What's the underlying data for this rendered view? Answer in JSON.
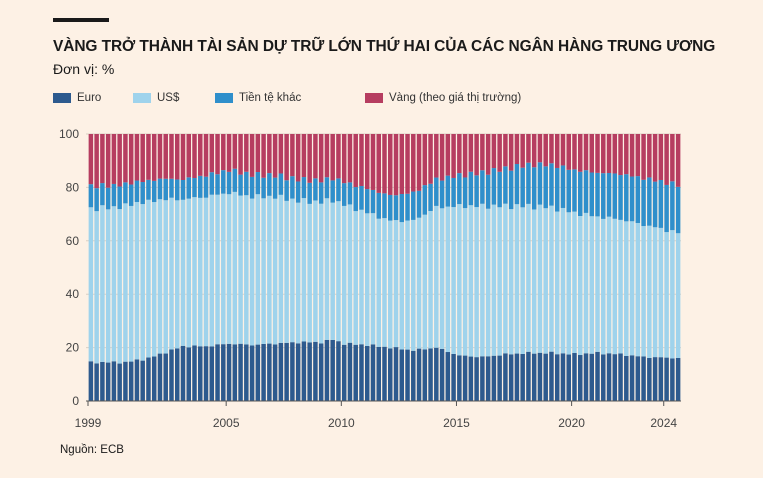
{
  "header": {
    "title": "VÀNG TRỞ THÀNH TÀI SẢN DỰ TRỮ LỚN THỨ HAI CỦA CÁC NGÂN HÀNG TRUNG ƯƠNG",
    "subtitle": "Đơn vị: %"
  },
  "footer": {
    "source": "Nguồn: ECB"
  },
  "colors": {
    "euro": "#2d5a8e",
    "usd": "#9fd3ec",
    "other": "#2f8fcb",
    "gold": "#b63d60",
    "grid": "#d9cfc4",
    "background": "#fdf1e5"
  },
  "chart_data": {
    "type": "bar",
    "stacked": true,
    "title": "VÀNG TRỞ THÀNH TÀI SẢN DỰ TRỮ LỚN THỨ HAI CỦA CÁC NGÂN HÀNG TRUNG ƯƠNG",
    "ylabel": "Đơn vị: %",
    "xlabel": "",
    "ylim": [
      0,
      100
    ],
    "yticks": [
      "0",
      "20",
      "40",
      "60",
      "80",
      "100"
    ],
    "xtick_labels": [
      "1999",
      "2005",
      "2010",
      "2015",
      "2020",
      "2024"
    ],
    "x_start": 1999,
    "x_end": 2024.75,
    "step": 0.25,
    "legend_position": "top",
    "series": [
      {
        "name": "Euro",
        "key": "euro",
        "anchors_x": [
          1999,
          2000.5,
          2001.5,
          2003,
          2004,
          2005,
          2006,
          2007,
          2008,
          2009,
          2009.5,
          2010,
          2011,
          2012,
          2013,
          2014,
          2015,
          2016,
          2017,
          2018,
          2019,
          2020,
          2021,
          2022,
          2023,
          2024.75
        ],
        "anchors_y": [
          14.5,
          14.5,
          16,
          20.5,
          20.5,
          21.5,
          21,
          21.5,
          22,
          22,
          23,
          21.5,
          21,
          20,
          19,
          20,
          17,
          16.5,
          17.5,
          18,
          18,
          17.5,
          18,
          17.5,
          16.5,
          16
        ]
      },
      {
        "name": "US$",
        "key": "usd",
        "anchors_x": [
          1999,
          2000,
          2001,
          2002,
          2003,
          2004,
          2005,
          2006,
          2007,
          2008,
          2009,
          2010,
          2011,
          2012,
          2013,
          2014,
          2015,
          2016,
          2017,
          2018,
          2019,
          2020,
          2021,
          2022,
          2023,
          2024.75
        ],
        "anchors_y": [
          57.5,
          58,
          59,
          58,
          55,
          56,
          56.5,
          55.5,
          55,
          53,
          52.5,
          52,
          49.5,
          47.5,
          48.5,
          52.5,
          56,
          56.5,
          55.5,
          55,
          54.5,
          53,
          51,
          50.5,
          49.5,
          46.5
        ]
      },
      {
        "name": "Tiền tệ khác",
        "key": "other",
        "anchors_x": [
          1999,
          2001,
          2003,
          2004,
          2005,
          2007,
          2008,
          2009,
          2010,
          2011,
          2012,
          2013,
          2014,
          2015,
          2016,
          2017,
          2018,
          2019,
          2020,
          2021,
          2022,
          2023,
          2024.75
        ],
        "anchors_y": [
          8.5,
          8,
          7.5,
          8,
          8.5,
          8,
          8,
          8,
          8.5,
          9,
          9.5,
          10.5,
          10.5,
          11.5,
          12.5,
          14,
          15.5,
          16,
          16,
          16.5,
          17,
          17.5,
          18
        ]
      },
      {
        "name": "Vàng (theo giá thị trường)",
        "key": "gold",
        "note": "remainder to 100"
      }
    ]
  }
}
